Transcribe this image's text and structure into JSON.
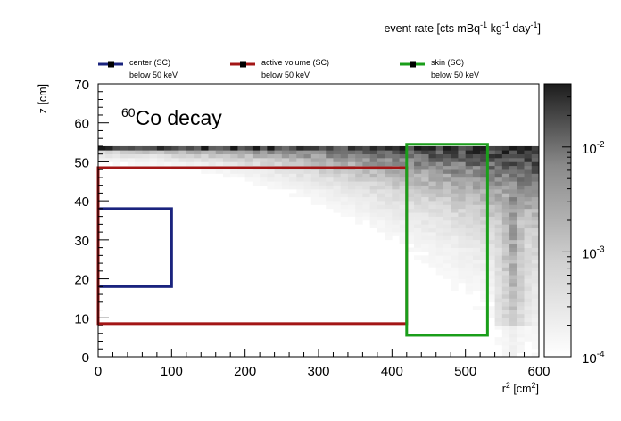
{
  "chart_data": {
    "type": "heatmap",
    "title": "",
    "annotation": {
      "superscript": "60",
      "text": "Co decay"
    },
    "xlabel": {
      "base": "r",
      "sup": "2",
      "unit_open": " [cm",
      "unit_sup": "2",
      "unit_close": "]"
    },
    "ylabel": "z [cm]",
    "xlim": [
      0,
      600
    ],
    "ylim": [
      0,
      70
    ],
    "xticks": [
      "0",
      "100",
      "200",
      "300",
      "400",
      "500",
      "600"
    ],
    "yticks": [
      "0",
      "10",
      "20",
      "30",
      "40",
      "50",
      "60",
      "70"
    ],
    "colorbar": {
      "title_parts": [
        "event rate [cts mBq",
        "-1",
        " kg",
        "-1",
        " day",
        "-1",
        "]"
      ],
      "scale": "log",
      "range": [
        0.0001,
        0.04
      ],
      "ticks": [
        {
          "value": 0.01,
          "base": "10",
          "exp": "-2"
        },
        {
          "value": 0.001,
          "base": "10",
          "exp": "-3"
        },
        {
          "value": 0.0001,
          "base": "10",
          "exp": "-4"
        }
      ]
    },
    "regions": [
      {
        "name": "center (SC)",
        "note": "below 50 keV",
        "color": "#1a237e",
        "r2": [
          0,
          100
        ],
        "z": [
          18,
          38
        ]
      },
      {
        "name": "active volume (SC)",
        "note": "below 50 keV",
        "color": "#a31515",
        "r2": [
          0,
          420
        ],
        "z": [
          8.5,
          48.5
        ]
      },
      {
        "name": "skin (SC)",
        "note": "below 50 keV",
        "color": "#1a9e1a",
        "r2": [
          420,
          530
        ],
        "z": [
          5.5,
          54.5
        ]
      }
    ],
    "heatmap": {
      "bin_width_r2": 10,
      "bin_height_z": 1,
      "description_note_free": true
    }
  }
}
